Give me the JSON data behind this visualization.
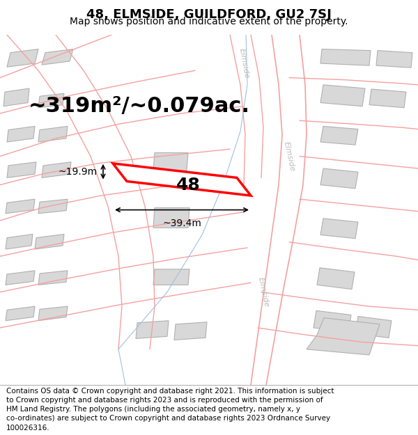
{
  "title": "48, ELMSIDE, GUILDFORD, GU2 7SJ",
  "subtitle": "Map shows position and indicative extent of the property.",
  "area_label": "~319m²/~0.079ac.",
  "width_label": "~39.4m",
  "height_label": "~19.9m",
  "number_label": "48",
  "footer": "Contains OS data © Crown copyright and database right 2021. This information is subject to Crown copyright and database rights 2023 and is reproduced with the permission of HM Land Registry. The polygons (including the associated geometry, namely x, y co-ordinates) are subject to Crown copyright and database rights 2023 Ordnance Survey 100026316.",
  "bg_color": "#f5f5f5",
  "map_bg": "#ffffff",
  "road_color_pink": "#f5a0a0",
  "road_color_blue": "#a0c0e0",
  "building_fill": "#d8d8d8",
  "building_edge": "#b0b0b0",
  "highlight_color": "#ff0000",
  "highlight_fill": "#ffffff",
  "street_label_color": "#aaaaaa",
  "title_fontsize": 13,
  "subtitle_fontsize": 10,
  "area_fontsize": 22,
  "number_fontsize": 18,
  "dim_fontsize": 10,
  "footer_fontsize": 7.5
}
